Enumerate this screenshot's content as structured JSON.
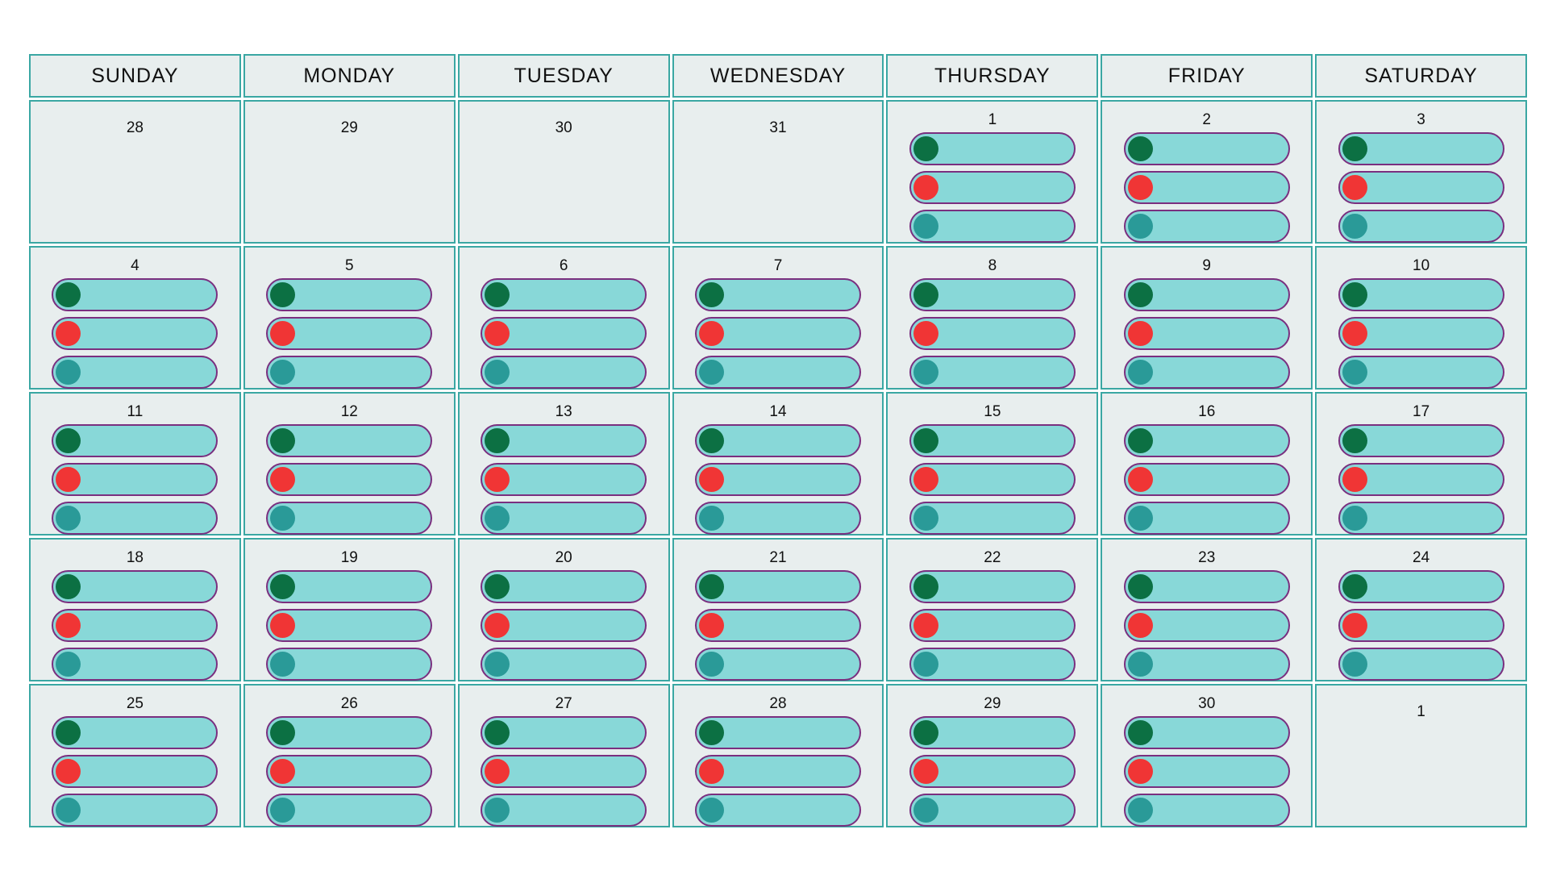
{
  "colors": {
    "cell_background": "#e8eeee",
    "cell_border": "#3aa7a3",
    "toggle_track": "#88d8d8",
    "toggle_border": "#7a2f7f",
    "knob_colors": [
      "#0c7043",
      "#f03535",
      "#2a9a98"
    ]
  },
  "weekdays": [
    "SUNDAY",
    "MONDAY",
    "TUESDAY",
    "WEDNESDAY",
    "THURSDAY",
    "FRIDAY",
    "SATURDAY"
  ],
  "weeks": [
    [
      {
        "day": "28",
        "toggles": false
      },
      {
        "day": "29",
        "toggles": false
      },
      {
        "day": "30",
        "toggles": false
      },
      {
        "day": "31",
        "toggles": false
      },
      {
        "day": "1",
        "toggles": true
      },
      {
        "day": "2",
        "toggles": true
      },
      {
        "day": "3",
        "toggles": true
      }
    ],
    [
      {
        "day": "4",
        "toggles": true
      },
      {
        "day": "5",
        "toggles": true
      },
      {
        "day": "6",
        "toggles": true
      },
      {
        "day": "7",
        "toggles": true
      },
      {
        "day": "8",
        "toggles": true
      },
      {
        "day": "9",
        "toggles": true
      },
      {
        "day": "10",
        "toggles": true
      }
    ],
    [
      {
        "day": "11",
        "toggles": true
      },
      {
        "day": "12",
        "toggles": true
      },
      {
        "day": "13",
        "toggles": true
      },
      {
        "day": "14",
        "toggles": true
      },
      {
        "day": "15",
        "toggles": true
      },
      {
        "day": "16",
        "toggles": true
      },
      {
        "day": "17",
        "toggles": true
      }
    ],
    [
      {
        "day": "18",
        "toggles": true
      },
      {
        "day": "19",
        "toggles": true
      },
      {
        "day": "20",
        "toggles": true
      },
      {
        "day": "21",
        "toggles": true
      },
      {
        "day": "22",
        "toggles": true
      },
      {
        "day": "23",
        "toggles": true
      },
      {
        "day": "24",
        "toggles": true
      }
    ],
    [
      {
        "day": "25",
        "toggles": true
      },
      {
        "day": "26",
        "toggles": true
      },
      {
        "day": "27",
        "toggles": true
      },
      {
        "day": "28",
        "toggles": true
      },
      {
        "day": "29",
        "toggles": true
      },
      {
        "day": "30",
        "toggles": true
      },
      {
        "day": "1",
        "toggles": false
      }
    ]
  ]
}
